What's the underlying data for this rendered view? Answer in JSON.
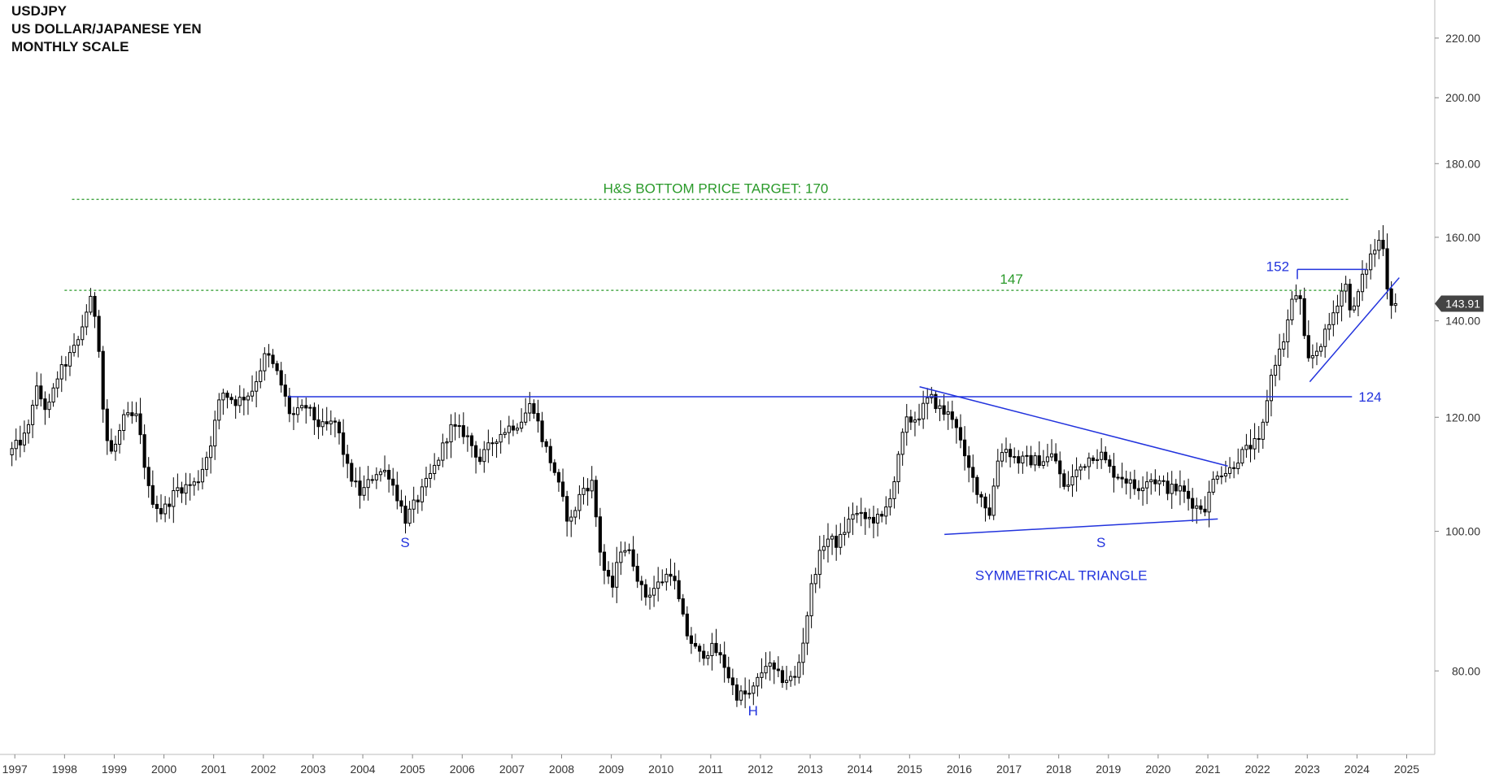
{
  "header": {
    "symbol": "USDJPY",
    "pair_name": "US DOLLAR/JAPANESE YEN",
    "scale": "MONTHLY SCALE"
  },
  "chart_data": {
    "type": "candlestick",
    "y_scale": "log",
    "ylim": [
      70,
      232
    ],
    "xlim": [
      1996.8,
      2025.45
    ],
    "y_ticks": [
      80,
      100,
      120,
      140,
      160,
      180,
      200,
      220
    ],
    "y_tick_labels": [
      "80.00",
      "100.00",
      "120.00",
      "140.00",
      "160.00",
      "180.00",
      "200.00",
      "220.00"
    ],
    "x_ticks": [
      1997,
      1998,
      1999,
      2000,
      2001,
      2002,
      2003,
      2004,
      2005,
      2006,
      2007,
      2008,
      2009,
      2010,
      2011,
      2012,
      2013,
      2014,
      2015,
      2016,
      2017,
      2018,
      2019,
      2020,
      2021,
      2022,
      2023,
      2024,
      2025
    ],
    "x_tick_labels": [
      "1997",
      "1998",
      "1999",
      "2000",
      "2001",
      "2002",
      "2003",
      "2004",
      "2005",
      "2006",
      "2007",
      "2008",
      "2009",
      "2010",
      "2011",
      "2012",
      "2013",
      "2014",
      "2015",
      "2016",
      "2017",
      "2018",
      "2019",
      "2020",
      "2021",
      "2022",
      "2023",
      "2024",
      "2025"
    ],
    "last_price": 143.91,
    "last_price_label": "143.91",
    "price_anchors": [
      [
        1996.9,
        113
      ],
      [
        1997.3,
        117
      ],
      [
        1997.45,
        126
      ],
      [
        1997.7,
        121
      ],
      [
        1997.9,
        128
      ],
      [
        1998.3,
        135
      ],
      [
        1998.55,
        145
      ],
      [
        1998.7,
        140
      ],
      [
        1998.85,
        117
      ],
      [
        1999.0,
        113
      ],
      [
        1999.25,
        120
      ],
      [
        1999.5,
        120
      ],
      [
        1999.75,
        106
      ],
      [
        2000.0,
        103
      ],
      [
        2000.3,
        107
      ],
      [
        2000.7,
        108
      ],
      [
        2000.95,
        114
      ],
      [
        2001.2,
        125
      ],
      [
        2001.5,
        123
      ],
      [
        2001.8,
        125
      ],
      [
        2002.1,
        133
      ],
      [
        2002.35,
        128
      ],
      [
        2002.6,
        120
      ],
      [
        2002.9,
        122
      ],
      [
        2003.2,
        118
      ],
      [
        2003.5,
        119
      ],
      [
        2003.75,
        110
      ],
      [
        2004.0,
        106
      ],
      [
        2004.3,
        110
      ],
      [
        2004.55,
        110
      ],
      [
        2004.9,
        102
      ],
      [
        2005.2,
        106
      ],
      [
        2005.5,
        111
      ],
      [
        2005.8,
        118
      ],
      [
        2006.1,
        117
      ],
      [
        2006.4,
        112
      ],
      [
        2006.7,
        116
      ],
      [
        2006.95,
        118
      ],
      [
        2007.2,
        119
      ],
      [
        2007.45,
        123
      ],
      [
        2007.65,
        116
      ],
      [
        2007.9,
        110
      ],
      [
        2008.2,
        101
      ],
      [
        2008.45,
        107
      ],
      [
        2008.65,
        108
      ],
      [
        2008.85,
        95
      ],
      [
        2009.05,
        91
      ],
      [
        2009.25,
        98
      ],
      [
        2009.45,
        96
      ],
      [
        2009.7,
        90
      ],
      [
        2010.0,
        92
      ],
      [
        2010.25,
        94
      ],
      [
        2010.55,
        85
      ],
      [
        2010.8,
        82
      ],
      [
        2011.1,
        83
      ],
      [
        2011.3,
        81
      ],
      [
        2011.55,
        77
      ],
      [
        2011.85,
        77
      ],
      [
        2012.15,
        81
      ],
      [
        2012.45,
        79
      ],
      [
        2012.75,
        79
      ],
      [
        2012.9,
        84
      ],
      [
        2013.1,
        93
      ],
      [
        2013.35,
        99
      ],
      [
        2013.6,
        98
      ],
      [
        2013.9,
        103
      ],
      [
        2014.15,
        102
      ],
      [
        2014.5,
        102
      ],
      [
        2014.75,
        109
      ],
      [
        2014.95,
        119
      ],
      [
        2015.2,
        120
      ],
      [
        2015.45,
        124
      ],
      [
        2015.7,
        121
      ],
      [
        2015.95,
        120
      ],
      [
        2016.15,
        112
      ],
      [
        2016.4,
        107
      ],
      [
        2016.65,
        103
      ],
      [
        2016.85,
        114
      ],
      [
        2017.0,
        114
      ],
      [
        2017.2,
        112
      ],
      [
        2017.45,
        112
      ],
      [
        2017.7,
        112
      ],
      [
        2017.95,
        113
      ],
      [
        2018.15,
        107
      ],
      [
        2018.4,
        110
      ],
      [
        2018.7,
        113
      ],
      [
        2018.9,
        113
      ],
      [
        2019.1,
        110
      ],
      [
        2019.35,
        109
      ],
      [
        2019.6,
        107
      ],
      [
        2019.85,
        109
      ],
      [
        2020.1,
        108
      ],
      [
        2020.25,
        107
      ],
      [
        2020.5,
        107
      ],
      [
        2020.8,
        104
      ],
      [
        2021.0,
        104
      ],
      [
        2021.2,
        110
      ],
      [
        2021.45,
        110
      ],
      [
        2021.7,
        113
      ],
      [
        2021.95,
        115
      ],
      [
        2022.1,
        115
      ],
      [
        2022.2,
        122
      ],
      [
        2022.35,
        130
      ],
      [
        2022.55,
        135
      ],
      [
        2022.75,
        145
      ],
      [
        2022.88,
        147
      ],
      [
        2022.95,
        138
      ],
      [
        2023.05,
        131
      ],
      [
        2023.2,
        133
      ],
      [
        2023.45,
        138
      ],
      [
        2023.6,
        143
      ],
      [
        2023.8,
        149
      ],
      [
        2023.95,
        141
      ],
      [
        2024.1,
        148
      ],
      [
        2024.3,
        155
      ],
      [
        2024.45,
        158
      ],
      [
        2024.55,
        161
      ],
      [
        2024.62,
        150
      ],
      [
        2024.7,
        145
      ],
      [
        2024.75,
        143.91
      ]
    ],
    "annotations": {
      "target_line": {
        "price": 170,
        "x_start": 1998.15,
        "x_end": 2023.85,
        "label": "H&S BOTTOM PRICE TARGET: 170",
        "label_x": 2011.1
      },
      "line_147": {
        "price": 147,
        "x_start": 1998.0,
        "x_end": 2023.75,
        "label": "147",
        "label_x": 2017.05
      },
      "neckline_124": {
        "price": 124,
        "x_start": 2002.5,
        "x_end": 2023.9,
        "label": "124"
      },
      "level_152": {
        "price": 152,
        "x_start": 2022.8,
        "x_end": 2024.2,
        "label": "152"
      },
      "triangle_upper": {
        "x_start": 2015.2,
        "x_end": 2021.4,
        "p_start": 126,
        "p_end": 111
      },
      "triangle_lower": {
        "x_start": 2015.7,
        "x_end": 2021.2,
        "p_start": 99.5,
        "p_end": 102
      },
      "channel_line": {
        "x_start": 2023.05,
        "x_end": 2024.85,
        "p_start": 127,
        "p_end": 150
      },
      "s_left": {
        "label": "S",
        "x": 2004.85,
        "price": 97.5
      },
      "h_label": {
        "label": "H",
        "x": 2011.85,
        "price": 74.5
      },
      "s_right": {
        "label": "S",
        "x": 2018.85,
        "price": 97.5
      },
      "sym_triangle": {
        "label": "SYMMETRICAL TRIANGLE",
        "x": 2018.05,
        "price": 92.5
      }
    }
  },
  "colors": {
    "annotation_blue": "#2233dd",
    "target_green": "#2a9a2a",
    "candle_up": "#ffffff",
    "candle_down": "#000000",
    "price_tag": "#444444"
  }
}
